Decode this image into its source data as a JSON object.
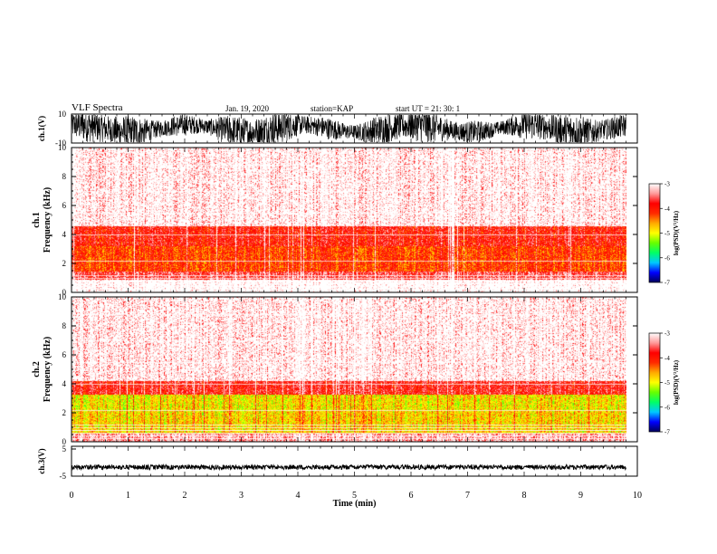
{
  "header": {
    "title": "VLF Spectra",
    "date": "Jan. 19, 2020",
    "station": "station=KAP",
    "start": "start UT =  21: 30: 1"
  },
  "chart_data": [
    {
      "type": "line",
      "panel": "ch1-waveform",
      "ylabel": "ch.1(V)",
      "ylim": [
        -10,
        10
      ],
      "yticks": [
        "10",
        "-10"
      ],
      "xlim": [
        0,
        10
      ],
      "data_extent": [
        0,
        9.8
      ],
      "description_values": "dense noisy waveform filling roughly -10 to 10 V"
    },
    {
      "type": "heatmap",
      "panel": "ch1-spectrogram",
      "ylabel": "ch.1\nFrequency (kHz)",
      "ylabel_line1": "ch.1",
      "ylabel_line2": "Frequency (kHz)",
      "ylim": [
        0,
        10
      ],
      "yticks": [
        "0",
        "2",
        "4",
        "6",
        "8",
        "10"
      ],
      "xlim": [
        0,
        10
      ],
      "data_extent": [
        0,
        9.8
      ],
      "colorbar": {
        "label": "log(PSD)(V²/Hz)",
        "range": [
          -7,
          -3
        ],
        "ticks": [
          "-3",
          "-4",
          "-5",
          "-6",
          "-7"
        ]
      },
      "bands": [
        {
          "f0": 0.0,
          "f1": 0.9,
          "level": -2.9
        },
        {
          "f0": 0.9,
          "f1": 1.5,
          "level": -3.6
        },
        {
          "f0": 1.5,
          "f1": 3.2,
          "level": -4.2
        },
        {
          "f0": 3.2,
          "f1": 4.6,
          "level": -3.9
        },
        {
          "f0": 4.6,
          "f1": 10.0,
          "level": -3.1
        }
      ]
    },
    {
      "type": "heatmap",
      "panel": "ch2-spectrogram",
      "ylabel": "ch.2\nFrequency (kHz)",
      "ylabel_line1": "ch.2",
      "ylabel_line2": "Frequency (kHz)",
      "ylim": [
        0,
        10
      ],
      "yticks": [
        "0",
        "2",
        "4",
        "6",
        "8",
        "10"
      ],
      "xlim": [
        0,
        10
      ],
      "data_extent": [
        0,
        9.8
      ],
      "colorbar": {
        "label": "log(PSD)(V²/Hz)",
        "range": [
          -7,
          -3
        ],
        "ticks": [
          "-3",
          "-4",
          "-5",
          "-6",
          "-7"
        ]
      },
      "bands": [
        {
          "f0": 0.0,
          "f1": 0.6,
          "level": -3.3
        },
        {
          "f0": 0.6,
          "f1": 2.2,
          "level": -4.8
        },
        {
          "f0": 2.2,
          "f1": 3.3,
          "level": -4.9
        },
        {
          "f0": 3.3,
          "f1": 4.2,
          "level": -3.8
        },
        {
          "f0": 4.2,
          "f1": 10.0,
          "level": -3.1
        }
      ]
    },
    {
      "type": "line",
      "panel": "ch3-waveform",
      "ylabel": "ch.3(V)",
      "ylim": [
        -5,
        5
      ],
      "yticks": [
        "5",
        "-5"
      ],
      "xlim": [
        0,
        10
      ],
      "data_extent": [
        0,
        9.8
      ],
      "value": -2,
      "xlabel": "Time (min)",
      "xticks": [
        "0",
        "1",
        "2",
        "3",
        "4",
        "5",
        "6",
        "7",
        "8",
        "9",
        "10"
      ]
    }
  ],
  "colors": {
    "colormap": [
      "#00005a",
      "#0000ff",
      "#00c8ff",
      "#00ff66",
      "#66ff00",
      "#ffff00",
      "#ffaa00",
      "#ff2a00",
      "#ff0000",
      "#ff9999",
      "#ffffff"
    ],
    "axes": "#000000",
    "trace": "#000000"
  }
}
